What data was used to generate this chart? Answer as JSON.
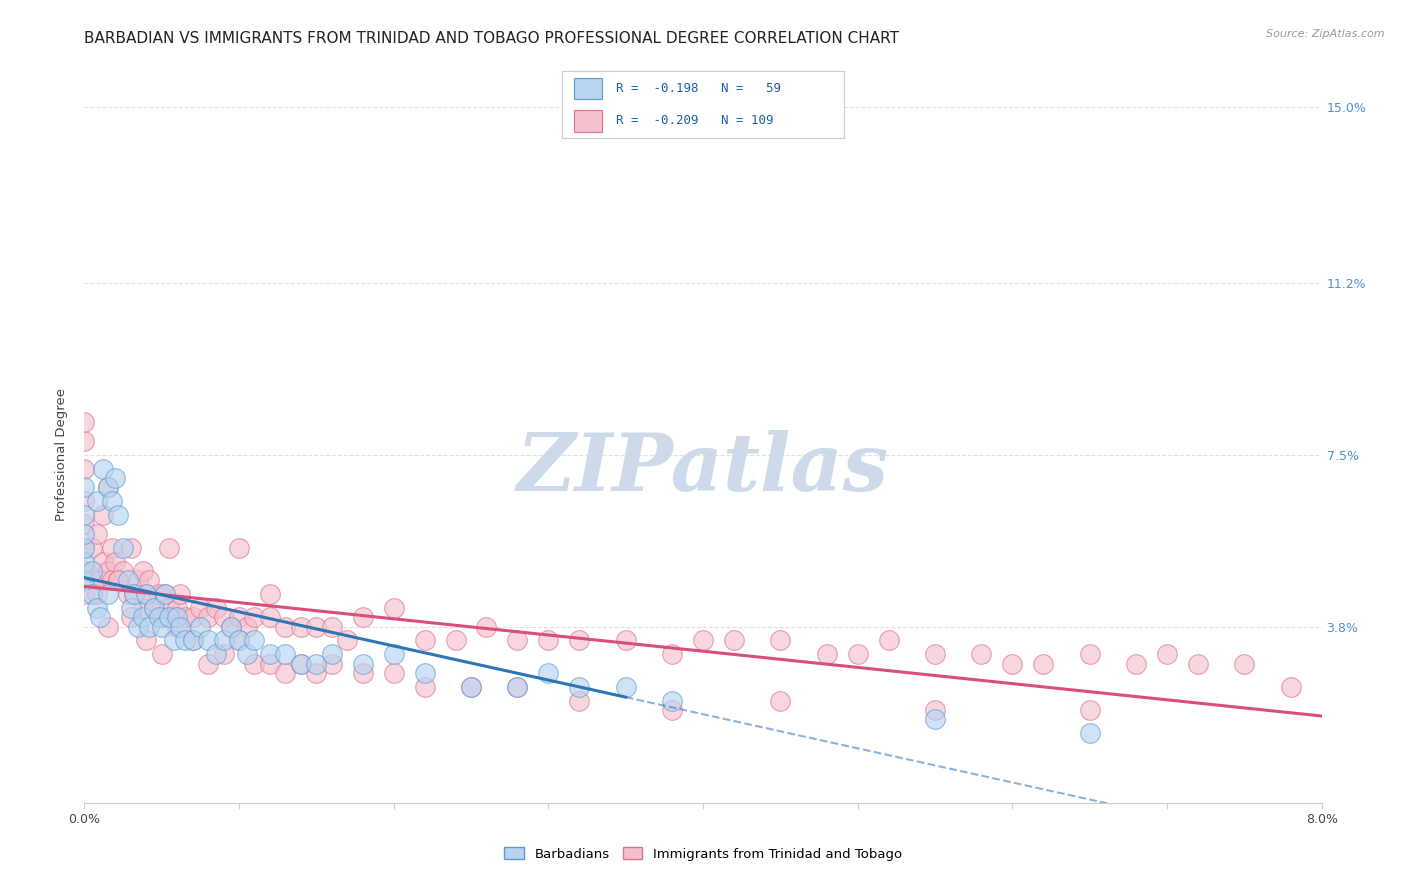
{
  "title": "BARBADIAN VS IMMIGRANTS FROM TRINIDAD AND TOBAGO PROFESSIONAL DEGREE CORRELATION CHART",
  "source": "Source: ZipAtlas.com",
  "ylabel": "Professional Degree",
  "xlim": [
    0.0,
    8.0
  ],
  "ylim": [
    0.0,
    15.0
  ],
  "yticks": [
    0.0,
    3.8,
    7.5,
    11.2,
    15.0
  ],
  "ytick_labels": [
    "",
    "3.8%",
    "7.5%",
    "11.2%",
    "15.0%"
  ],
  "background_color": "#ffffff",
  "grid_color": "#e0e0e0",
  "barbadian_color": "#b8d4f0",
  "barbadian_edge_color": "#5b9bd5",
  "barbadian_line_color": "#2e75b6",
  "trinidad_color": "#f4c0cd",
  "trinidad_edge_color": "#e07090",
  "trinidad_line_color": "#d94f7a",
  "watermark_color": "#cdd9e8",
  "R_barbadian": -0.198,
  "N_barbadian": 59,
  "R_trinidad": -0.209,
  "N_trinidad": 109,
  "legend_label_1": "Barbadians",
  "legend_label_2": "Immigrants from Trinidad and Tobago",
  "title_fontsize": 11,
  "tick_fontsize": 9,
  "barbadian_x": [
    0.0,
    0.0,
    0.0,
    0.0,
    0.0,
    0.0,
    0.05,
    0.05,
    0.08,
    0.08,
    0.1,
    0.12,
    0.15,
    0.15,
    0.18,
    0.2,
    0.22,
    0.25,
    0.28,
    0.3,
    0.32,
    0.35,
    0.38,
    0.4,
    0.42,
    0.45,
    0.48,
    0.5,
    0.52,
    0.55,
    0.58,
    0.6,
    0.62,
    0.65,
    0.7,
    0.75,
    0.8,
    0.85,
    0.9,
    0.95,
    1.0,
    1.05,
    1.1,
    1.2,
    1.3,
    1.4,
    1.5,
    1.6,
    1.8,
    2.0,
    2.2,
    2.5,
    2.8,
    3.0,
    3.2,
    3.5,
    3.8,
    5.5,
    6.5
  ],
  "barbadian_y": [
    4.8,
    5.2,
    5.5,
    5.8,
    6.2,
    6.8,
    4.5,
    5.0,
    4.2,
    6.5,
    4.0,
    7.2,
    6.8,
    4.5,
    6.5,
    7.0,
    6.2,
    5.5,
    4.8,
    4.2,
    4.5,
    3.8,
    4.0,
    4.5,
    3.8,
    4.2,
    4.0,
    3.8,
    4.5,
    4.0,
    3.5,
    4.0,
    3.8,
    3.5,
    3.5,
    3.8,
    3.5,
    3.2,
    3.5,
    3.8,
    3.5,
    3.2,
    3.5,
    3.2,
    3.2,
    3.0,
    3.0,
    3.2,
    3.0,
    3.2,
    2.8,
    2.5,
    2.5,
    2.8,
    2.5,
    2.5,
    2.2,
    1.8,
    1.5
  ],
  "trinidad_x": [
    0.0,
    0.0,
    0.0,
    0.0,
    0.0,
    0.0,
    0.0,
    0.0,
    0.05,
    0.05,
    0.08,
    0.08,
    0.1,
    0.12,
    0.12,
    0.15,
    0.15,
    0.18,
    0.18,
    0.2,
    0.22,
    0.25,
    0.28,
    0.3,
    0.32,
    0.35,
    0.38,
    0.38,
    0.4,
    0.42,
    0.45,
    0.48,
    0.5,
    0.52,
    0.55,
    0.55,
    0.58,
    0.6,
    0.62,
    0.65,
    0.7,
    0.75,
    0.8,
    0.85,
    0.9,
    0.95,
    1.0,
    1.0,
    1.05,
    1.1,
    1.2,
    1.2,
    1.3,
    1.4,
    1.5,
    1.6,
    1.7,
    1.8,
    2.0,
    2.2,
    2.4,
    2.6,
    2.8,
    3.0,
    3.2,
    3.5,
    3.8,
    4.0,
    4.2,
    4.5,
    4.8,
    5.0,
    5.2,
    5.5,
    5.8,
    6.0,
    6.2,
    6.5,
    6.8,
    7.0,
    7.2,
    7.5,
    7.8,
    0.15,
    0.22,
    0.3,
    0.4,
    0.5,
    0.6,
    0.7,
    0.8,
    0.9,
    1.0,
    1.1,
    1.2,
    1.3,
    1.4,
    1.5,
    1.6,
    1.8,
    2.0,
    2.2,
    2.5,
    2.8,
    3.2,
    3.8,
    4.5,
    5.5,
    6.5
  ],
  "trinidad_y": [
    4.5,
    5.0,
    5.5,
    6.0,
    6.5,
    7.2,
    7.8,
    8.2,
    4.8,
    5.5,
    4.5,
    5.8,
    4.8,
    5.2,
    6.2,
    5.0,
    6.8,
    4.8,
    5.5,
    5.2,
    4.8,
    5.0,
    4.5,
    5.5,
    4.5,
    4.8,
    5.0,
    4.2,
    4.5,
    4.8,
    4.2,
    4.5,
    4.0,
    4.5,
    4.2,
    5.5,
    4.0,
    4.2,
    4.5,
    4.0,
    4.0,
    4.2,
    4.0,
    4.2,
    4.0,
    3.8,
    4.0,
    5.5,
    3.8,
    4.0,
    4.0,
    4.5,
    3.8,
    3.8,
    3.8,
    3.8,
    3.5,
    4.0,
    4.2,
    3.5,
    3.5,
    3.8,
    3.5,
    3.5,
    3.5,
    3.5,
    3.2,
    3.5,
    3.5,
    3.5,
    3.2,
    3.2,
    3.5,
    3.2,
    3.2,
    3.0,
    3.0,
    3.2,
    3.0,
    3.2,
    3.0,
    3.0,
    2.5,
    3.8,
    4.8,
    4.0,
    3.5,
    3.2,
    3.8,
    3.5,
    3.0,
    3.2,
    3.5,
    3.0,
    3.0,
    2.8,
    3.0,
    2.8,
    3.0,
    2.8,
    2.8,
    2.5,
    2.5,
    2.5,
    2.2,
    2.0,
    2.2,
    2.0,
    2.0
  ]
}
